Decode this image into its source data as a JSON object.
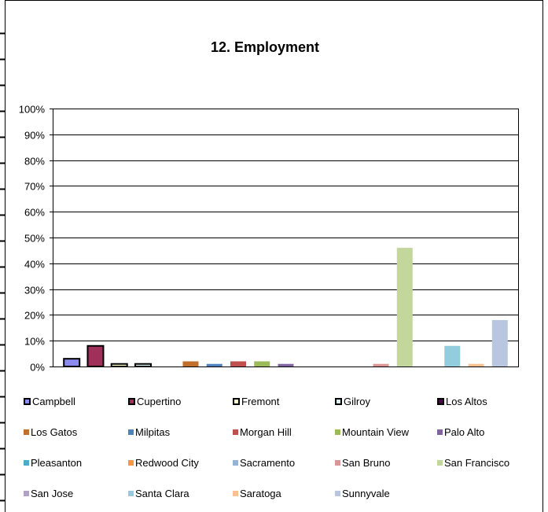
{
  "chart_data": {
    "type": "bar",
    "title": "12. Employment",
    "xlabel": "",
    "ylabel": "",
    "ylim": [
      0,
      100
    ],
    "yticks": [
      "0%",
      "10%",
      "20%",
      "30%",
      "40%",
      "50%",
      "60%",
      "70%",
      "80%",
      "90%",
      "100%"
    ],
    "grid": true,
    "legend_position": "bottom",
    "series": [
      {
        "name": "Campbell",
        "value": 3,
        "color": "#8b8bf0",
        "outlined": true
      },
      {
        "name": "Cupertino",
        "value": 8,
        "color": "#a0305a",
        "outlined": true
      },
      {
        "name": "Fremont",
        "value": 1,
        "color": "#ffffc8",
        "outlined": true
      },
      {
        "name": "Gilroy",
        "value": 1,
        "color": "#d8f4f4",
        "outlined": true
      },
      {
        "name": "Los Altos",
        "value": 0,
        "color": "#4a0a4a",
        "outlined": true
      },
      {
        "name": "Los Gatos",
        "value": 2,
        "color": "#c0702a",
        "outlined": false
      },
      {
        "name": "Milpitas",
        "value": 1,
        "color": "#4f81bd",
        "outlined": false
      },
      {
        "name": "Morgan Hill",
        "value": 2,
        "color": "#c0504d",
        "outlined": false
      },
      {
        "name": "Mountain View",
        "value": 2,
        "color": "#9bbb59",
        "outlined": false
      },
      {
        "name": "Palo Alto",
        "value": 1,
        "color": "#8064a2",
        "outlined": false
      },
      {
        "name": "Pleasanton",
        "value": 0,
        "color": "#4bacc6",
        "outlined": false
      },
      {
        "name": "Redwood City",
        "value": 0,
        "color": "#f79646",
        "outlined": false
      },
      {
        "name": "Sacramento",
        "value": 0,
        "color": "#95b3d7",
        "outlined": false
      },
      {
        "name": "San Bruno",
        "value": 1,
        "color": "#d99694",
        "outlined": false
      },
      {
        "name": "San Francisco",
        "value": 46,
        "color": "#c3d69b",
        "outlined": false
      },
      {
        "name": "San Jose",
        "value": 0,
        "color": "#b3a2c7",
        "outlined": false
      },
      {
        "name": "Santa Clara",
        "value": 8,
        "color": "#93cddd",
        "outlined": false
      },
      {
        "name": "Saratoga",
        "value": 1,
        "color": "#fac090",
        "outlined": false
      },
      {
        "name": "Sunnyvale",
        "value": 18,
        "color": "#b9c6e0",
        "outlined": false
      }
    ]
  }
}
